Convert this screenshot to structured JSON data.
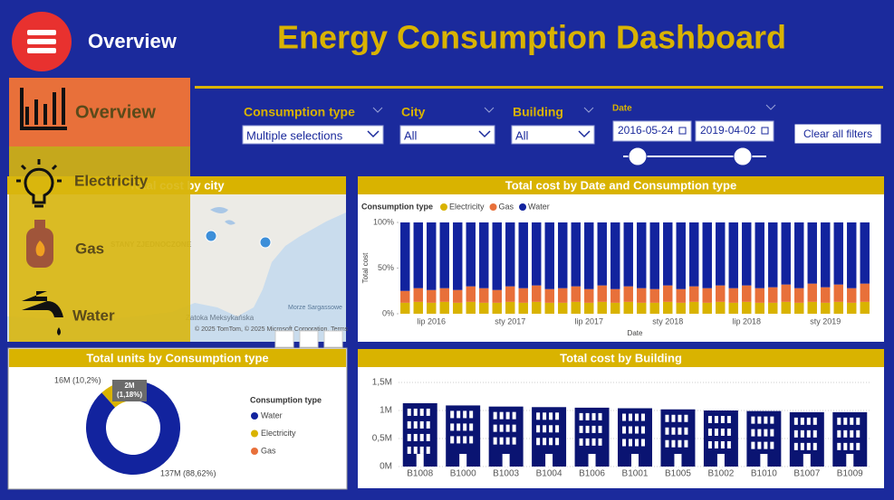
{
  "header": {
    "menu_label": "Overview",
    "title": "Energy Consumption Dashboard"
  },
  "nav": {
    "items": [
      "Overview",
      "Electricity",
      "Gas",
      "Water"
    ]
  },
  "filters": {
    "consumption_type": {
      "label": "Consumption type",
      "value": "Multiple selections"
    },
    "city": {
      "label": "City",
      "value": "All"
    },
    "building": {
      "label": "Building",
      "value": "All"
    },
    "date": {
      "label": "Date",
      "start": "2016-05-24",
      "end": "2019-04-02"
    },
    "clear_button": "Clear all filters"
  },
  "map": {
    "title": "Total cost by city",
    "labels": [
      "STANY ZJEDNOCZONE",
      "Zatoka Meksykańska",
      "Morze Sargassowe"
    ],
    "attribution": "© 2025 TomTom, © 2025 Microsoft Corporation, Terms"
  },
  "chart_data": [
    {
      "type": "stacked_bar",
      "title": "Total cost by Date and Consumption type",
      "legend_title": "Consumption type",
      "x_label": "Date",
      "y_label": "Total cost",
      "categories": [
        null,
        null,
        "lip 2016",
        null,
        null,
        null,
        null,
        null,
        "sty 2017",
        null,
        null,
        null,
        null,
        null,
        "lip 2017",
        null,
        null,
        null,
        null,
        null,
        "sty 2018",
        null,
        null,
        null,
        null,
        null,
        "lip 2018",
        null,
        null,
        null,
        null,
        null,
        "sty 2019",
        null,
        null,
        null
      ],
      "series": [
        {
          "name": "Electricity",
          "color": "#d9b300",
          "values": [
            12,
            13,
            12,
            13,
            12,
            13,
            12,
            12,
            13,
            12,
            13,
            12,
            12,
            13,
            12,
            13,
            12,
            13,
            12,
            12,
            13,
            12,
            13,
            12,
            13,
            12,
            13,
            12,
            12,
            13,
            12,
            13,
            12,
            13,
            12,
            13
          ]
        },
        {
          "name": "Gas",
          "color": "#e8703a",
          "values": [
            13,
            15,
            14,
            15,
            14,
            17,
            16,
            14,
            17,
            16,
            18,
            15,
            16,
            17,
            15,
            18,
            15,
            17,
            16,
            15,
            18,
            15,
            17,
            16,
            18,
            16,
            18,
            16,
            17,
            19,
            16,
            20,
            17,
            19,
            16,
            20
          ]
        },
        {
          "name": "Water",
          "color": "#12239e",
          "values": [
            75,
            72,
            74,
            72,
            74,
            70,
            72,
            74,
            70,
            72,
            69,
            73,
            72,
            70,
            73,
            69,
            73,
            70,
            72,
            73,
            69,
            73,
            70,
            72,
            69,
            72,
            69,
            72,
            71,
            68,
            72,
            67,
            71,
            68,
            72,
            67
          ]
        }
      ],
      "ylim": [
        0,
        100
      ],
      "yticks": [
        {
          "value": 0,
          "label": "0%"
        },
        {
          "value": 50,
          "label": "50%"
        },
        {
          "value": 100,
          "label": "100%"
        }
      ]
    },
    {
      "type": "donut",
      "title": "Total units by Consumption type",
      "legend_title": "Consumption type",
      "categories": [
        "Water",
        "Electricity",
        "Gas"
      ],
      "values": [
        137,
        16,
        2
      ],
      "value_labels": [
        "137M (88,62%)",
        "16M (10,2%)",
        "2M (1,18%)"
      ],
      "colors": [
        "#12239e",
        "#d9b300",
        "#e8703a"
      ]
    },
    {
      "type": "building_bar",
      "title": "Total cost by Building",
      "color": "#0a1472",
      "categories": [
        "B1008",
        "B1000",
        "B1003",
        "B1004",
        "B1006",
        "B1001",
        "B1005",
        "B1002",
        "B1010",
        "B1007",
        "B1009"
      ],
      "values": [
        1.13,
        1.09,
        1.07,
        1.06,
        1.05,
        1.04,
        1.02,
        1.0,
        0.99,
        0.97,
        0.97
      ],
      "ylim": [
        0,
        1.5
      ],
      "yticks": [
        {
          "value": 0,
          "label": "0M"
        },
        {
          "value": 0.5,
          "label": "0,5M"
        },
        {
          "value": 1,
          "label": "1M"
        },
        {
          "value": 1.5,
          "label": "1,5M"
        }
      ],
      "grid": true
    }
  ]
}
